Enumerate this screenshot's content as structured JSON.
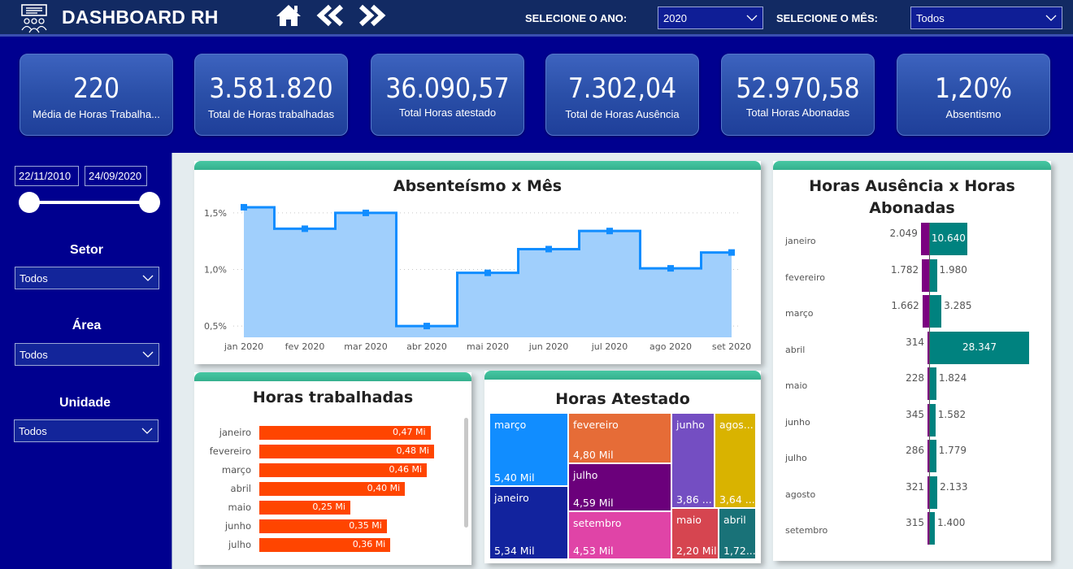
{
  "header": {
    "title": "DASHBOARD RH",
    "logo_icon": "hr-presentation-people-icon",
    "nav": [
      {
        "name": "home-icon",
        "glyph": "⌂"
      },
      {
        "name": "double-chevron-left-icon",
        "glyph": "«"
      },
      {
        "name": "double-chevron-right-icon",
        "glyph": "»"
      }
    ],
    "year_label": "SELECIONE O ANO:",
    "year_value": "2020",
    "month_label": "SELECIONE O MÊS:",
    "month_value": "Todos"
  },
  "kpis": [
    {
      "value": "220",
      "label": "Média de Horas Trabalha..."
    },
    {
      "value": "3.581.820",
      "label": "Total de Horas trabalhadas"
    },
    {
      "value": "36.090,57",
      "label": "Total Horas atestado"
    },
    {
      "value": "7.302,04",
      "label": "Total de Horas Ausência"
    },
    {
      "value": "52.970,58",
      "label": "Total Horas Abonadas"
    },
    {
      "value": "1,20%",
      "label": "Absentismo"
    }
  ],
  "sidebar": {
    "date_start": "22/11/2010",
    "date_end": "24/09/2020",
    "filters": [
      {
        "title": "Setor",
        "value": "Todos"
      },
      {
        "title": "Área",
        "value": "Todos"
      },
      {
        "title": "Unidade",
        "value": "Todos"
      }
    ]
  },
  "colors": {
    "header_bg": "#122a63",
    "page_bg": "#00008f",
    "card_accent": "#3fbf9a",
    "line_series": "#118dff",
    "area_fill": "#a0cffc",
    "bar_orange": "#ff4500",
    "ausencia": "#7b0280",
    "abonadas": "#00827f"
  },
  "chart_data": [
    {
      "type": "line",
      "subtype": "step-area",
      "title": "Absenteísmo x Mês",
      "xlabel": "",
      "ylabel": "",
      "categories": [
        "jan 2020",
        "fev 2020",
        "mar 2020",
        "abr 2020",
        "mai 2020",
        "jun 2020",
        "jul 2020",
        "ago 2020",
        "set 2020"
      ],
      "values": [
        1.55,
        1.36,
        1.5,
        0.5,
        0.97,
        1.18,
        1.34,
        1.01,
        1.15
      ],
      "unit": "%",
      "yticks": [
        "0,5%",
        "1,0%",
        "1,5%"
      ],
      "ytick_values": [
        0.5,
        1.0,
        1.5
      ],
      "ylim": [
        0.4,
        1.6
      ],
      "grid": true
    },
    {
      "type": "bar",
      "orientation": "horizontal",
      "title": "Horas trabalhadas",
      "categories": [
        "janeiro",
        "fevereiro",
        "março",
        "abril",
        "maio",
        "junho",
        "julho"
      ],
      "values": [
        0.47,
        0.48,
        0.46,
        0.4,
        0.25,
        0.35,
        0.36
      ],
      "labels": [
        "0,47 Mi",
        "0,48 Mi",
        "0,46 Mi",
        "0,40 Mi",
        "0,25 Mi",
        "0,35 Mi",
        "0,36 Mi"
      ],
      "unit": "Mi",
      "scrollable": true
    },
    {
      "type": "treemap",
      "title": "Horas Atestado",
      "items": [
        {
          "name": "março",
          "value": 5.4,
          "label": "5,40 Mil",
          "color": "#118dff"
        },
        {
          "name": "janeiro",
          "value": 5.34,
          "label": "5,34 Mil",
          "color": "#12239e"
        },
        {
          "name": "fevereiro",
          "value": 4.8,
          "label": "4,80 Mil",
          "color": "#e66c37"
        },
        {
          "name": "julho",
          "value": 4.59,
          "label": "4,59 Mil",
          "color": "#6b007b"
        },
        {
          "name": "setembro",
          "value": 4.53,
          "label": "4,53 Mil",
          "color": "#e044a7"
        },
        {
          "name": "junho",
          "value": 3.86,
          "label": "3,86 ...",
          "color": "#744ec2"
        },
        {
          "name": "agos...",
          "value": 3.64,
          "label": "3,64 ...",
          "color": "#d9b300"
        },
        {
          "name": "maio",
          "value": 2.2,
          "label": "2,20 Mil",
          "color": "#d64550"
        },
        {
          "name": "abril",
          "value": 1.72,
          "label": "1,72...",
          "color": "#197278"
        }
      ]
    },
    {
      "type": "bar",
      "orientation": "horizontal-diverging",
      "title": "Horas Ausência x Horas Abonadas",
      "categories": [
        "janeiro",
        "fevereiro",
        "março",
        "abril",
        "maio",
        "junho",
        "julho",
        "agosto",
        "setembro"
      ],
      "series": [
        {
          "name": "Horas Ausência",
          "values": [
            2049,
            1782,
            1662,
            314,
            228,
            345,
            286,
            321,
            315
          ],
          "labels": [
            "2.049",
            "1.782",
            "1.662",
            "314",
            "228",
            "345",
            "286",
            "321",
            "315"
          ]
        },
        {
          "name": "Horas Abonadas",
          "values": [
            10640,
            1980,
            3285,
            28347,
            1824,
            1582,
            1779,
            2133,
            1400
          ],
          "labels": [
            "10.640",
            "1.980",
            "3.285",
            "28.347",
            "1.824",
            "1.582",
            "1.779",
            "2.133",
            "1.400"
          ]
        }
      ]
    }
  ]
}
